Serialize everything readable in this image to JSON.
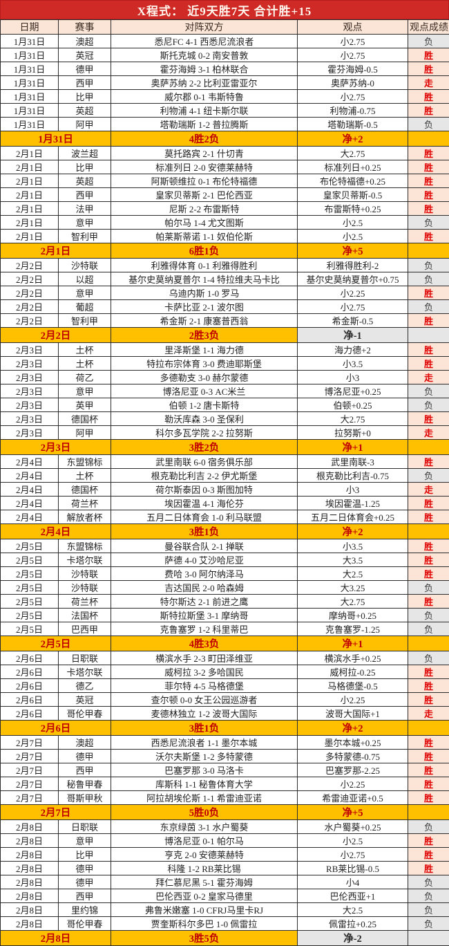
{
  "title": "X程式： 近9天胜7天 合计胜+15",
  "columns": {
    "date": "日期",
    "league": "赛事",
    "matchup": "对阵双方",
    "pick": "观点",
    "result": "观点成绩"
  },
  "legend": {
    "win": "胜",
    "push": "走",
    "lose": "负"
  },
  "colors": {
    "title_bg": "#d02a26",
    "title_text": "#fff6ee",
    "header_bg": "#fbe5d6",
    "summary_bg": "#ffc000",
    "summary_text": "#c00000",
    "win_bg": "#fce4d6",
    "win_text": "#e00000",
    "lose_bg": "#e7e6e6"
  },
  "days": [
    {
      "matches": [
        {
          "date": "1月31日",
          "league": "澳超",
          "matchup": "悉尼FC 4-1 西悉尼流浪者",
          "pick": "小2.75",
          "result": "负"
        },
        {
          "date": "1月31日",
          "league": "英冠",
          "matchup": "斯托克城 0-2 南安普敦",
          "pick": "小2.75",
          "result": "胜"
        },
        {
          "date": "1月31日",
          "league": "德甲",
          "matchup": "霍芬海姆 3-1 柏林联合",
          "pick": "霍芬海姆-0.5",
          "result": "胜"
        },
        {
          "date": "1月31日",
          "league": "西甲",
          "matchup": "奥萨苏纳 2-2 比利亚雷亚尔",
          "pick": "奥萨苏纳-0",
          "result": "走"
        },
        {
          "date": "1月31日",
          "league": "比甲",
          "matchup": "威尔郡 0-1 韦斯特鲁",
          "pick": "小2.75",
          "result": "胜"
        },
        {
          "date": "1月31日",
          "league": "英超",
          "matchup": "利物浦 4-1 纽卡斯尔联",
          "pick": "利物浦-0.75",
          "result": "胜"
        },
        {
          "date": "1月31日",
          "league": "阿甲",
          "matchup": "塔勒瑞斯 1-2 普拉腾斯",
          "pick": "塔勒瑞斯-0.5",
          "result": "负"
        }
      ],
      "summary": {
        "date": "1月31日",
        "record": "4胜2负",
        "net": "净+2",
        "net_positive": true
      }
    },
    {
      "matches": [
        {
          "date": "2月1日",
          "league": "波兰超",
          "matchup": "莫托路宾 2-1 什切青",
          "pick": "大2.75",
          "result": "胜"
        },
        {
          "date": "2月1日",
          "league": "比甲",
          "matchup": "标准列日 2-0 安德莱赫特",
          "pick": "标准列日+0.25",
          "result": "胜"
        },
        {
          "date": "2月1日",
          "league": "英超",
          "matchup": "阿斯顿维拉 0-1 布伦特福德",
          "pick": "布伦特福德+0.25",
          "result": "胜"
        },
        {
          "date": "2月1日",
          "league": "西甲",
          "matchup": "皇家贝蒂斯 2-1 巴伦西亚",
          "pick": "皇家贝蒂斯-0.5",
          "result": "胜"
        },
        {
          "date": "2月1日",
          "league": "法甲",
          "matchup": "尼斯 2-2 布雷斯特",
          "pick": "布雷斯特+0.25",
          "result": "胜"
        },
        {
          "date": "2月1日",
          "league": "意甲",
          "matchup": "帕尔马 1-4 尤文图斯",
          "pick": "小2.5",
          "result": "负"
        },
        {
          "date": "2月1日",
          "league": "智利甲",
          "matchup": "帕莱斯蒂诺 1-1 奴伯伦斯",
          "pick": "小2.5",
          "result": "胜"
        }
      ],
      "summary": {
        "date": "2月1日",
        "record": "6胜1负",
        "net": "净+5",
        "net_positive": true
      }
    },
    {
      "matches": [
        {
          "date": "2月2日",
          "league": "沙特联",
          "matchup": "利雅得体育 0-1 利雅得胜利",
          "pick": "利雅得胜利-2",
          "result": "负"
        },
        {
          "date": "2月2日",
          "league": "以超",
          "matchup": "基尔史莫纳夏普尔 1-4 特拉维夫马卡比",
          "pick": "基尔史莫纳夏普尔+0.75",
          "result": "负"
        },
        {
          "date": "2月2日",
          "league": "意甲",
          "matchup": "乌迪内斯 1-0 罗马",
          "pick": "小2.25",
          "result": "胜"
        },
        {
          "date": "2月2日",
          "league": "葡超",
          "matchup": "卡萨比亚 2-1 波尔图",
          "pick": "小2.75",
          "result": "负"
        },
        {
          "date": "2月2日",
          "league": "智利甲",
          "matchup": "希金斯 2-1 康塞普西翁",
          "pick": "希金斯-0.5",
          "result": "胜"
        }
      ],
      "summary": {
        "date": "2月2日",
        "record": "2胜3负",
        "net": "净-1",
        "net_positive": false
      }
    },
    {
      "matches": [
        {
          "date": "2月3日",
          "league": "土杯",
          "matchup": "里泽斯堡 1-1 海力德",
          "pick": "海力德+2",
          "result": "胜"
        },
        {
          "date": "2月3日",
          "league": "土杯",
          "matchup": "特拉布宗体育 3-0 费迪耶斯堡",
          "pick": "小3.5",
          "result": "胜"
        },
        {
          "date": "2月3日",
          "league": "荷乙",
          "matchup": "多德勒支 3-0 赫尔蒙德",
          "pick": "小3",
          "result": "走"
        },
        {
          "date": "2月3日",
          "league": "意甲",
          "matchup": "博洛尼亚 0-3 AC米兰",
          "pick": "博洛尼亚+0.25",
          "result": "负"
        },
        {
          "date": "2月3日",
          "league": "英甲",
          "matchup": "伯顿 1-2 唐卡斯特",
          "pick": "伯顿+0.25",
          "result": "负"
        },
        {
          "date": "2月3日",
          "league": "德国杯",
          "matchup": "勒沃库森 3-0 圣保利",
          "pick": "大2.75",
          "result": "胜"
        },
        {
          "date": "2月3日",
          "league": "阿甲",
          "matchup": "科尔多瓦学院 2-2 拉努斯",
          "pick": "拉努斯+0",
          "result": "走"
        }
      ],
      "summary": {
        "date": "2月3日",
        "record": "3胜2负",
        "net": "净+1",
        "net_positive": true
      }
    },
    {
      "matches": [
        {
          "date": "2月4日",
          "league": "东盟锦标",
          "matchup": "武里南联 6-0 宿务俱乐部",
          "pick": "武里南联-3",
          "result": "胜"
        },
        {
          "date": "2月4日",
          "league": "土杯",
          "matchup": "根克勒比利吉 2-2 伊尤斯堡",
          "pick": "根克勒比利吉-0.75",
          "result": "负"
        },
        {
          "date": "2月4日",
          "league": "德国杯",
          "matchup": "荷尔斯泰因 0-3 斯图加特",
          "pick": "小3",
          "result": "走"
        },
        {
          "date": "2月4日",
          "league": "荷兰杯",
          "matchup": "埃因霍温 4-1 海伦芬",
          "pick": "埃因霍温-1.25",
          "result": "胜"
        },
        {
          "date": "2月4日",
          "league": "解放者杯",
          "matchup": "五月二日体育会 1-0 利马联盟",
          "pick": "五月二日体育会+0.25",
          "result": "胜"
        }
      ],
      "summary": {
        "date": "2月4日",
        "record": "3胜1负",
        "net": "净+2",
        "net_positive": true
      }
    },
    {
      "matches": [
        {
          "date": "2月5日",
          "league": "东盟锦标",
          "matchup": "曼谷联合队 2-1 掸联",
          "pick": "小3.5",
          "result": "胜"
        },
        {
          "date": "2月5日",
          "league": "卡塔尔联",
          "matchup": "萨德 4-0 艾沙哈尼亚",
          "pick": "大3.5",
          "result": "胜"
        },
        {
          "date": "2月5日",
          "league": "沙特联",
          "matchup": "费哈 3-0 阿尔纳泽马",
          "pick": "大2.5",
          "result": "胜"
        },
        {
          "date": "2月5日",
          "league": "沙特联",
          "matchup": "吉达国民 2-0 哈森姆",
          "pick": "大3.25",
          "result": "负"
        },
        {
          "date": "2月5日",
          "league": "荷兰杯",
          "matchup": "特尔斯达 2-1 前进之鹰",
          "pick": "大2.75",
          "result": "胜"
        },
        {
          "date": "2月5日",
          "league": "法国杯",
          "matchup": "斯特拉斯堡 3-1 摩纳哥",
          "pick": "摩纳哥+0.25",
          "result": "负"
        },
        {
          "date": "2月5日",
          "league": "巴西甲",
          "matchup": "克鲁塞罗 1-2 科里蒂巴",
          "pick": "克鲁塞罗-1.25",
          "result": "负"
        }
      ],
      "summary": {
        "date": "2月5日",
        "record": "4胜3负",
        "net": "净+1",
        "net_positive": true
      }
    },
    {
      "matches": [
        {
          "date": "2月6日",
          "league": "日职联",
          "matchup": "横滨水手 2-3 町田泽维亚",
          "pick": "横滨水手+0.25",
          "result": "负"
        },
        {
          "date": "2月6日",
          "league": "卡塔尔联",
          "matchup": "威柯拉 3-2 多哈国民",
          "pick": "威柯拉-0.25",
          "result": "胜"
        },
        {
          "date": "2月6日",
          "league": "德乙",
          "matchup": "菲尔特 4-5 马格德堡",
          "pick": "马格德堡-0.5",
          "result": "胜"
        },
        {
          "date": "2月6日",
          "league": "英冠",
          "matchup": "查尔顿 0-0 女王公园巡游者",
          "pick": "小2.25",
          "result": "胜"
        },
        {
          "date": "2月6日",
          "league": "哥伦甲春",
          "matchup": "麦德林独立 1-2 波哥大国际",
          "pick": "波哥大国际+1",
          "result": "走"
        }
      ],
      "summary": {
        "date": "2月6日",
        "record": "3胜1负",
        "net": "净+2",
        "net_positive": true
      }
    },
    {
      "matches": [
        {
          "date": "2月7日",
          "league": "澳超",
          "matchup": "西悉尼流浪者 1-1 墨尔本城",
          "pick": "墨尔本城+0.25",
          "result": "胜"
        },
        {
          "date": "2月7日",
          "league": "德甲",
          "matchup": "沃尔夫斯堡 1-2 多特蒙德",
          "pick": "多特蒙德-0.75",
          "result": "胜"
        },
        {
          "date": "2月7日",
          "league": "西甲",
          "matchup": "巴塞罗那 3-0 马洛卡",
          "pick": "巴塞罗那-2.25",
          "result": "胜"
        },
        {
          "date": "2月7日",
          "league": "秘鲁甲春",
          "matchup": "库斯科 1-1 秘鲁体育大学",
          "pick": "小2.25",
          "result": "胜"
        },
        {
          "date": "2月7日",
          "league": "哥斯甲秋",
          "matchup": "阿拉胡埃伦斯 1-1 希雷迪亚诺",
          "pick": "希雷迪亚诺+0.5",
          "result": "胜"
        }
      ],
      "summary": {
        "date": "2月7日",
        "record": "5胜0负",
        "net": "净+5",
        "net_positive": true
      }
    },
    {
      "matches": [
        {
          "date": "2月8日",
          "league": "日职联",
          "matchup": "东京绿茵 3-1 水户蜀葵",
          "pick": "水户蜀葵+0.25",
          "result": "负"
        },
        {
          "date": "2月8日",
          "league": "意甲",
          "matchup": "博洛尼亚 0-1 帕尔马",
          "pick": "小2.5",
          "result": "胜"
        },
        {
          "date": "2月8日",
          "league": "比甲",
          "matchup": "亨克 2-0 安德莱赫特",
          "pick": "小2.75",
          "result": "胜"
        },
        {
          "date": "2月8日",
          "league": "德甲",
          "matchup": "科隆 1-2 RB莱比锡",
          "pick": "RB莱比锡-0.5",
          "result": "胜"
        },
        {
          "date": "2月8日",
          "league": "德甲",
          "matchup": "拜仁慕尼黑 5-1 霍芬海姆",
          "pick": "小4",
          "result": "负"
        },
        {
          "date": "2月8日",
          "league": "西甲",
          "matchup": "巴伦西亚 0-2 皇家马德里",
          "pick": "巴伦西亚+1",
          "result": "负"
        },
        {
          "date": "2月8日",
          "league": "里约锦",
          "matchup": "弗鲁米嫩塞 1-0 CFRJ马里卡RJ",
          "pick": "大2.5",
          "result": "负"
        },
        {
          "date": "2月8日",
          "league": "哥伦甲春",
          "matchup": "贾奎斯科尔多巴 1-0 佩雷拉",
          "pick": "佩雷拉+0.25",
          "result": "负"
        }
      ],
      "summary": {
        "date": "2月8日",
        "record": "3胜5负",
        "net": "净-2",
        "net_positive": false
      }
    }
  ]
}
